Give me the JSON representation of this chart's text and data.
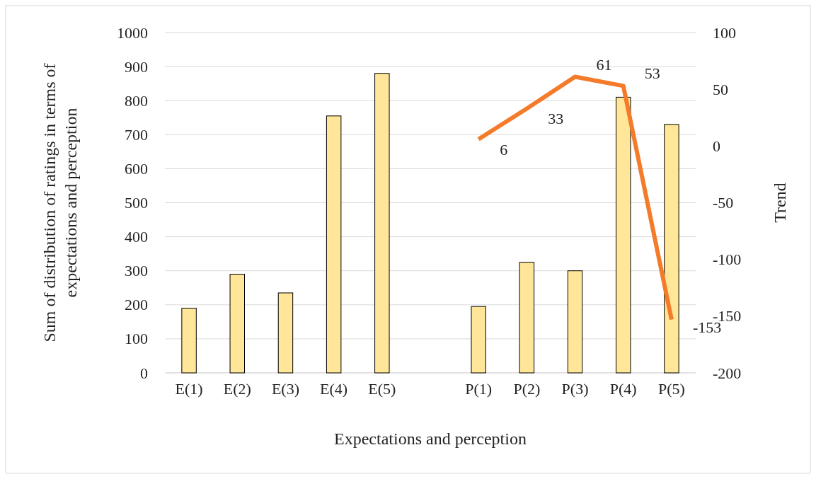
{
  "chart_data": {
    "type": "bar",
    "xlabel": "Expectations and perception",
    "ylabel": "Sum of distribution of ratings in terms of expectations and perception",
    "y2label": "Trend",
    "categories": [
      "E(1)",
      "E(2)",
      "E(3)",
      "E(4)",
      "E(5)",
      null,
      "P(1)",
      "P(2)",
      "P(3)",
      "P(4)",
      "P(5)"
    ],
    "series": [
      {
        "color": "#ffe699",
        "values": [
          190,
          290,
          235,
          755,
          880,
          null,
          195,
          325,
          300,
          810,
          730
        ]
      },
      {
        "type": "line",
        "axis": "y2",
        "color": "#f47b2a",
        "values": [
          null,
          null,
          null,
          null,
          null,
          null,
          6,
          33,
          61,
          53,
          -153
        ],
        "value_labels": [
          null,
          null,
          null,
          null,
          null,
          null,
          "6",
          "33",
          "61",
          "53",
          "-153"
        ]
      }
    ],
    "ylim": [
      0,
      1000
    ],
    "yticks": [
      0,
      100,
      200,
      300,
      400,
      500,
      600,
      700,
      800,
      900,
      1000
    ],
    "y2lim": [
      -200,
      100
    ],
    "y2ticks": [
      -200,
      -150,
      -100,
      -50,
      0,
      50,
      100
    ],
    "grid": "y",
    "marker": "none",
    "line_style": "solid"
  }
}
